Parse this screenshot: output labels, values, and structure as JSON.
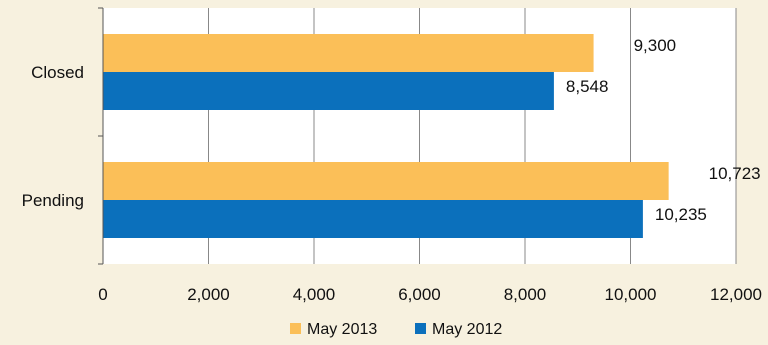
{
  "chart_data": {
    "type": "bar",
    "orientation": "horizontal",
    "categories": [
      "Closed",
      "Pending"
    ],
    "series": [
      {
        "name": "May 2013",
        "values": [
          9300,
          10723
        ],
        "labels": [
          "9,300",
          "10,723"
        ],
        "color": "#fbbf58"
      },
      {
        "name": "May 2012",
        "values": [
          8548,
          10235
        ],
        "labels": [
          "8,548",
          "10,235"
        ],
        "color": "#0b70bc"
      }
    ],
    "xlim": [
      0,
      12000
    ],
    "xticks": [
      0,
      2000,
      4000,
      6000,
      8000,
      10000,
      12000
    ],
    "xtick_labels": [
      "0",
      "2,000",
      "4,000",
      "6,000",
      "8,000",
      "10,000",
      "12,000"
    ],
    "grid": true,
    "legend_position": "bottom",
    "title": "",
    "xlabel": "",
    "ylabel": ""
  },
  "colors": {
    "background": "#f7f1df",
    "plot_area": "#ffffff",
    "gridline": "#888888"
  }
}
